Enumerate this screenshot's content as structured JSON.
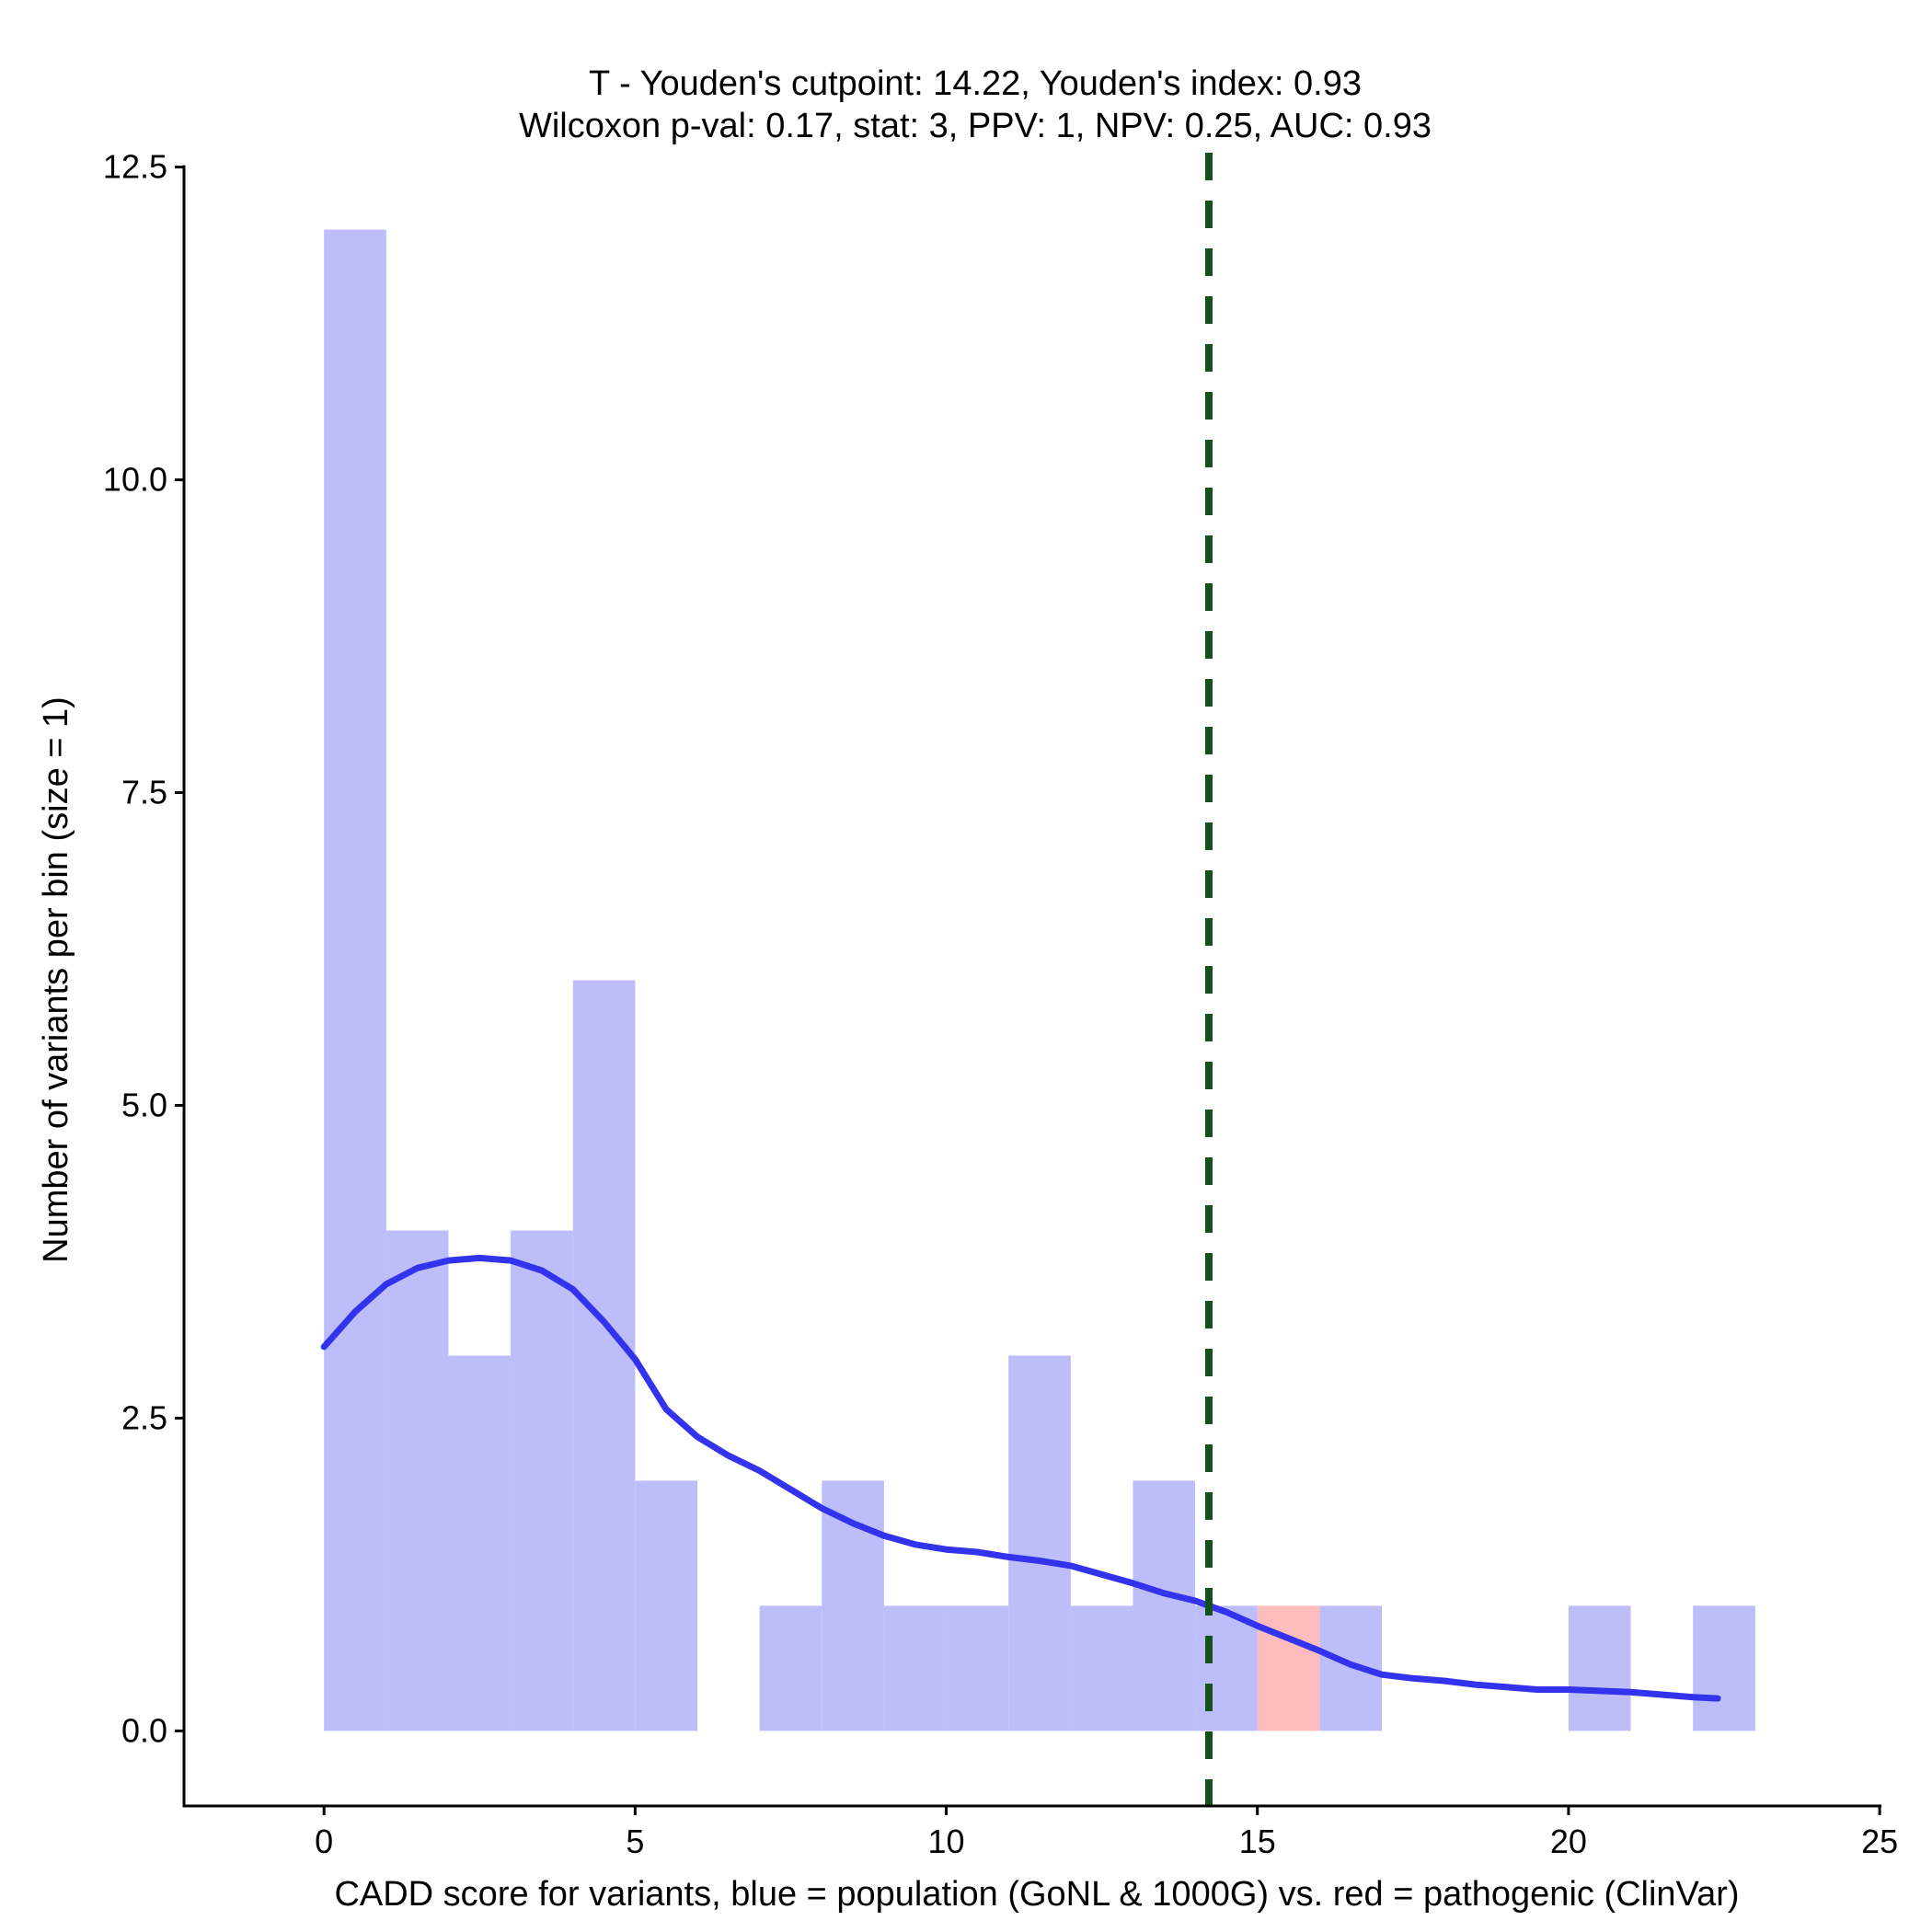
{
  "chart_data": {
    "type": "bar",
    "title": [
      "T - Youden's cutpoint: 14.22, Youden's index: 0.93",
      "Wilcoxon p-val: 0.17, stat: 3, PPV: 1, NPV: 0.25, AUC: 0.93"
    ],
    "xlabel": "CADD score for variants, blue = population (GoNL & 1000G) vs. red = pathogenic (ClinVar)",
    "ylabel": "Number of variants per bin (size = 1)",
    "xlim": [
      -2.25,
      25.25
    ],
    "ylim": [
      -0.6,
      12.6
    ],
    "x_ticks": [
      0,
      5,
      10,
      15,
      20,
      25
    ],
    "y_ticks": [
      0.0,
      2.5,
      5.0,
      7.5,
      10.0,
      12.5
    ],
    "x_tick_labels": [
      "0",
      "5",
      "10",
      "15",
      "20",
      "25"
    ],
    "y_tick_labels": [
      "0.0",
      "2.5",
      "5.0",
      "7.5",
      "10.0",
      "12.5"
    ],
    "bin_size": 1,
    "series": [
      {
        "name": "population (GoNL & 1000G)",
        "color": "#bdbdfa",
        "bins": [
          {
            "x0": 0,
            "count": 12
          },
          {
            "x0": 1,
            "count": 4
          },
          {
            "x0": 2,
            "count": 3
          },
          {
            "x0": 3,
            "count": 4
          },
          {
            "x0": 4,
            "count": 6
          },
          {
            "x0": 5,
            "count": 2
          },
          {
            "x0": 7,
            "count": 1
          },
          {
            "x0": 8,
            "count": 2
          },
          {
            "x0": 9,
            "count": 1
          },
          {
            "x0": 10,
            "count": 1
          },
          {
            "x0": 11,
            "count": 3
          },
          {
            "x0": 12,
            "count": 1
          },
          {
            "x0": 13,
            "count": 2
          },
          {
            "x0": 14,
            "count": 1
          },
          {
            "x0": 16,
            "count": 1
          },
          {
            "x0": 20,
            "count": 1
          },
          {
            "x0": 22,
            "count": 1
          }
        ]
      },
      {
        "name": "pathogenic (ClinVar)",
        "color": "#fdbcbc",
        "bins": [
          {
            "x0": 15,
            "count": 1
          }
        ]
      }
    ],
    "density_curve": {
      "color": "#3333ee",
      "points": [
        [
          0.0,
          3.07
        ],
        [
          0.5,
          3.35
        ],
        [
          1.0,
          3.57
        ],
        [
          1.5,
          3.7
        ],
        [
          2.0,
          3.76
        ],
        [
          2.5,
          3.78
        ],
        [
          3.0,
          3.76
        ],
        [
          3.5,
          3.68
        ],
        [
          4.0,
          3.53
        ],
        [
          4.5,
          3.27
        ],
        [
          5.0,
          2.97
        ],
        [
          5.5,
          2.57
        ],
        [
          6.0,
          2.35
        ],
        [
          6.5,
          2.2
        ],
        [
          7.0,
          2.08
        ],
        [
          7.5,
          1.93
        ],
        [
          8.0,
          1.78
        ],
        [
          8.5,
          1.66
        ],
        [
          9.0,
          1.56
        ],
        [
          9.5,
          1.49
        ],
        [
          10.0,
          1.45
        ],
        [
          10.5,
          1.43
        ],
        [
          11.0,
          1.39
        ],
        [
          11.5,
          1.36
        ],
        [
          12.0,
          1.32
        ],
        [
          12.5,
          1.25
        ],
        [
          13.0,
          1.18
        ],
        [
          13.5,
          1.1
        ],
        [
          14.0,
          1.04
        ],
        [
          14.5,
          0.95
        ],
        [
          15.0,
          0.84
        ],
        [
          15.5,
          0.74
        ],
        [
          16.0,
          0.64
        ],
        [
          16.5,
          0.53
        ],
        [
          17.0,
          0.45
        ],
        [
          17.5,
          0.42
        ],
        [
          18.0,
          0.4
        ],
        [
          18.5,
          0.37
        ],
        [
          19.0,
          0.35
        ],
        [
          19.5,
          0.33
        ],
        [
          20.0,
          0.33
        ],
        [
          20.5,
          0.32
        ],
        [
          21.0,
          0.31
        ],
        [
          21.5,
          0.29
        ],
        [
          22.0,
          0.27
        ],
        [
          22.4,
          0.26
        ]
      ]
    },
    "cutpoint": {
      "x": 14.22,
      "color": "#14501a",
      "style": "dashed"
    },
    "grid": false,
    "legend": "none"
  }
}
